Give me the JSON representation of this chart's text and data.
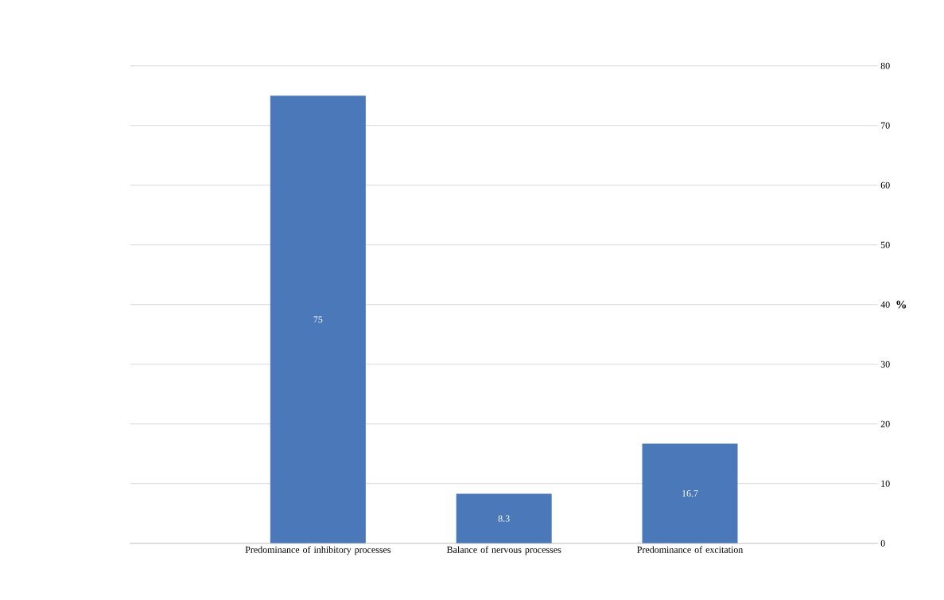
{
  "chart_data": {
    "type": "bar",
    "ylabel": "%",
    "categories": [
      "Predominance of inhibitory processes",
      "Balance of nervous processes",
      "Predominance of excitation"
    ],
    "values": [
      75,
      8.3,
      16.7
    ],
    "color": "#4a78b8",
    "ylim": [
      0,
      80
    ],
    "yticks": [
      0,
      10,
      20,
      30,
      40,
      50,
      60,
      70,
      80
    ],
    "grid": "y",
    "data_labels": true
  }
}
